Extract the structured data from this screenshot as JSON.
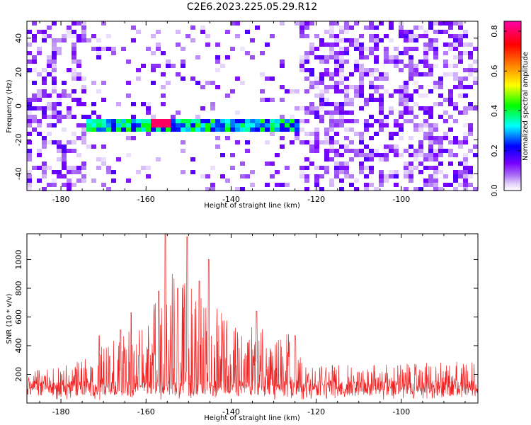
{
  "title": "C2E6.2023.225.05.29.R12",
  "colors": {
    "background": "#ffffff",
    "axis": "#000000",
    "snr_line": "#ee2222",
    "colormap": [
      "#ffffff",
      "#c9a8f5",
      "#7b00ff",
      "#0000ff",
      "#00ffff",
      "#00ff00",
      "#ffff00",
      "#ff7f00",
      "#ff0000",
      "#ff00aa"
    ]
  },
  "chart_data": [
    {
      "type": "heatmap",
      "xlabel": "Height of straight line (km)",
      "ylabel": "Frequency (Hz)",
      "xlim": [
        -188,
        -82
      ],
      "ylim": [
        -50,
        50
      ],
      "xticks": [
        -180,
        -160,
        -140,
        -120,
        -100
      ],
      "xtick_labels": [
        "-180",
        "-160",
        "-140",
        "-120",
        "-100"
      ],
      "yticks": [
        -40,
        -20,
        0,
        20,
        40
      ],
      "ytick_labels": [
        "-40",
        "-20",
        "0",
        "20",
        "40"
      ],
      "colorbar": {
        "label": "Normalized spectral amplitude",
        "range": [
          0,
          0.85
        ],
        "ticks": [
          0.0,
          0.2,
          0.4,
          0.6,
          0.8
        ],
        "tick_labels": [
          "0.0",
          "0.2",
          "0.4",
          "0.6",
          "0.8"
        ]
      },
      "signal_band": {
        "x_range": [
          -174,
          -124
        ],
        "frequency_center": -11,
        "frequency_halfwidth": 4,
        "amplitude_range": [
          0.2,
          0.8
        ],
        "peak": {
          "x": -156.5,
          "y": -10,
          "amplitude": 0.8
        }
      },
      "noise_regions": {
        "x_ranges": [
          [
            -188,
            -174
          ],
          [
            -124,
            -82
          ]
        ],
        "amplitude_range": [
          0.0,
          0.15
        ]
      }
    },
    {
      "type": "line",
      "xlabel": "Height of straight line (km)",
      "ylabel": "SNR (10 * v/v)",
      "xlim": [
        -188,
        -82
      ],
      "ylim": [
        0,
        1180
      ],
      "xticks": [
        -180,
        -160,
        -140,
        -120,
        -100
      ],
      "xtick_labels": [
        "-180",
        "-160",
        "-140",
        "-120",
        "-100"
      ],
      "yticks": [
        200,
        400,
        600,
        800,
        1000
      ],
      "ytick_labels": [
        "200",
        "400",
        "600",
        "800",
        "1000"
      ],
      "baseline_noise": 120,
      "envelope": [
        {
          "x": -188,
          "y": 220
        },
        {
          "x": -180,
          "y": 230
        },
        {
          "x": -175,
          "y": 300
        },
        {
          "x": -170,
          "y": 380
        },
        {
          "x": -166,
          "y": 450
        },
        {
          "x": -162,
          "y": 520
        },
        {
          "x": -160,
          "y": 600
        },
        {
          "x": -158,
          "y": 720
        },
        {
          "x": -155,
          "y": 900
        },
        {
          "x": -150,
          "y": 850
        },
        {
          "x": -145,
          "y": 700
        },
        {
          "x": -140,
          "y": 550
        },
        {
          "x": -136,
          "y": 500
        },
        {
          "x": -133,
          "y": 560
        },
        {
          "x": -130,
          "y": 450
        },
        {
          "x": -126,
          "y": 500
        },
        {
          "x": -124,
          "y": 380
        },
        {
          "x": -122,
          "y": 250
        },
        {
          "x": -110,
          "y": 250
        },
        {
          "x": -100,
          "y": 260
        },
        {
          "x": -82,
          "y": 270
        }
      ],
      "peaks": [
        {
          "x": -155.5,
          "y": 1180
        },
        {
          "x": -150.3,
          "y": 1160
        },
        {
          "x": -145.3,
          "y": 1000
        },
        {
          "x": -163.5,
          "y": 630
        },
        {
          "x": -147.5,
          "y": 850
        },
        {
          "x": -152.5,
          "y": 800
        },
        {
          "x": -134.0,
          "y": 640
        },
        {
          "x": -157.0,
          "y": 780
        },
        {
          "x": -125.0,
          "y": 470
        },
        {
          "x": -171.0,
          "y": 470
        },
        {
          "x": -166.0,
          "y": 510
        }
      ]
    }
  ]
}
